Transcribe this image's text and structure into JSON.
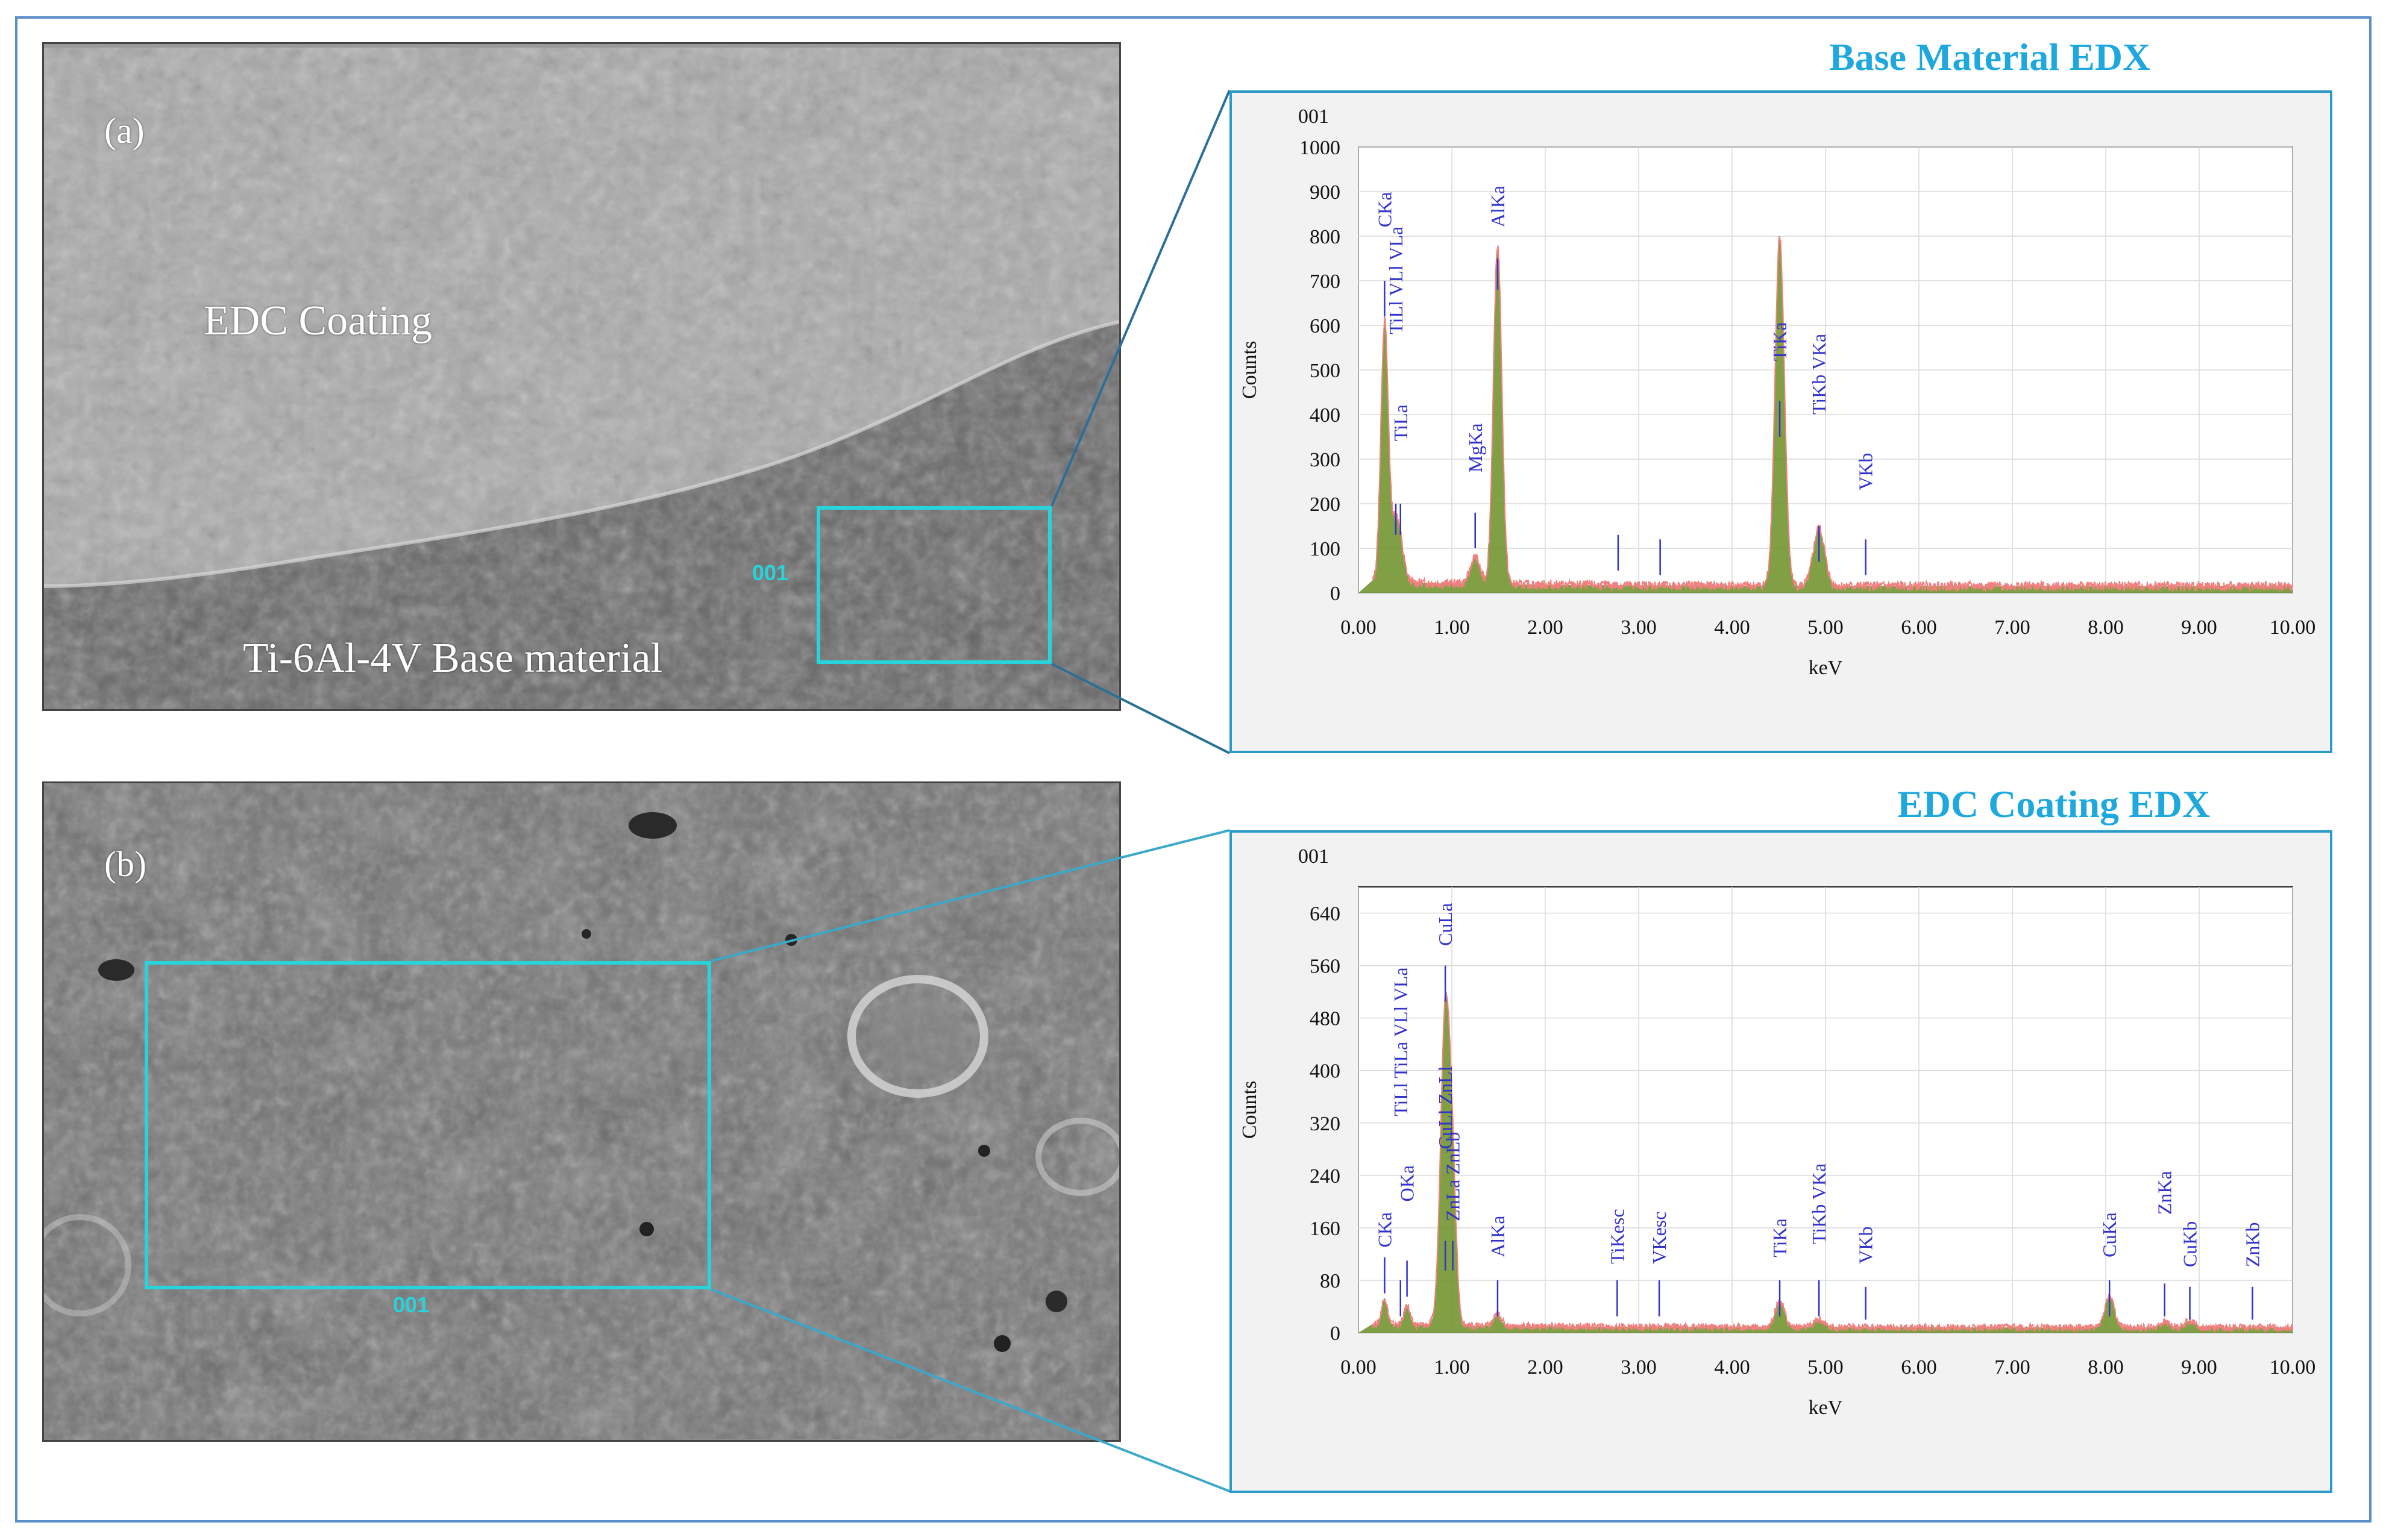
{
  "panel_a": {
    "label": "(a)",
    "coating_label": "EDC Coating",
    "base_label": "Ti-6Al-4V Base material",
    "site_tag": "001"
  },
  "panel_b": {
    "label": "(b)",
    "site_tag": "001"
  },
  "colors": {
    "accent": "#1fa8de",
    "region_box": "#27d4dc",
    "fit_fill": "#6b8e23",
    "spectrum_line": "#f08080",
    "peak_marker": "#3333cc",
    "frame": "#5b8fc9"
  },
  "chart_data": [
    {
      "type": "line",
      "title": "Base Material EDX",
      "subtitle": "001",
      "xlabel": "keV",
      "ylabel": "Counts",
      "xlim": [
        0,
        10
      ],
      "ylim": [
        0,
        1000
      ],
      "xticks": [
        "0.00",
        "1.00",
        "2.00",
        "3.00",
        "4.00",
        "5.00",
        "6.00",
        "7.00",
        "8.00",
        "9.00",
        "10.00"
      ],
      "yticks": [
        "0",
        "100",
        "200",
        "300",
        "400",
        "500",
        "600",
        "700",
        "800",
        "900",
        "1000"
      ],
      "grid": true,
      "peaks": [
        {
          "energy": 0.28,
          "counts": 580,
          "width": 0.04
        },
        {
          "energy": 0.4,
          "counts": 120,
          "width": 0.05
        },
        {
          "energy": 0.45,
          "counts": 40,
          "width": 0.05
        },
        {
          "energy": 1.25,
          "counts": 60,
          "width": 0.05
        },
        {
          "energy": 1.49,
          "counts": 760,
          "width": 0.045
        },
        {
          "energy": 4.51,
          "counts": 780,
          "width": 0.05
        },
        {
          "energy": 4.93,
          "counts": 130,
          "width": 0.06
        }
      ],
      "background_counts": 15,
      "peak_labels": [
        {
          "label": "CKa",
          "energy": 0.28,
          "label_counts": 820,
          "marker_top": 700,
          "marker_bottom": 620
        },
        {
          "label": "TiLl VLl VLa",
          "energy": 0.4,
          "label_counts": 580,
          "marker_top": 200,
          "marker_bottom": 130
        },
        {
          "label": "TiLa",
          "energy": 0.45,
          "label_counts": 340,
          "marker_top": 200,
          "marker_bottom": 130
        },
        {
          "label": "MgKa",
          "energy": 1.25,
          "label_counts": 270,
          "marker_top": 180,
          "marker_bottom": 100
        },
        {
          "label": "AlKa",
          "energy": 1.49,
          "label_counts": 820,
          "marker_top": 750,
          "marker_bottom": 680
        },
        {
          "label": "TiKa",
          "energy": 4.51,
          "label_counts": 520,
          "marker_top": 430,
          "marker_bottom": 350
        },
        {
          "label": "TiKb VKa",
          "energy": 4.93,
          "label_counts": 400,
          "marker_top": 150,
          "marker_bottom": 70
        },
        {
          "label": "VKb",
          "energy": 5.43,
          "label_counts": 230,
          "marker_top": 120,
          "marker_bottom": 40
        },
        {
          "label": "",
          "energy": 2.78,
          "label_counts": 0,
          "marker_top": 130,
          "marker_bottom": 50
        },
        {
          "label": "",
          "energy": 3.23,
          "label_counts": 0,
          "marker_top": 120,
          "marker_bottom": 40
        }
      ]
    },
    {
      "type": "line",
      "title": "EDC Coating EDX",
      "subtitle": "001",
      "xlabel": "keV",
      "ylabel": "Counts",
      "xlim": [
        0,
        10
      ],
      "ylim": [
        0,
        680
      ],
      "xticks": [
        "0.00",
        "1.00",
        "2.00",
        "3.00",
        "4.00",
        "5.00",
        "6.00",
        "7.00",
        "8.00",
        "9.00",
        "10.00"
      ],
      "yticks": [
        "0",
        "80",
        "160",
        "240",
        "320",
        "400",
        "480",
        "560",
        "640"
      ],
      "grid": true,
      "peaks": [
        {
          "energy": 0.28,
          "counts": 40,
          "width": 0.03
        },
        {
          "energy": 0.52,
          "counts": 30,
          "width": 0.03
        },
        {
          "energy": 0.93,
          "counts": 480,
          "width": 0.05
        },
        {
          "energy": 1.01,
          "counts": 180,
          "width": 0.04
        },
        {
          "energy": 1.49,
          "counts": 18,
          "width": 0.04
        },
        {
          "energy": 4.51,
          "counts": 40,
          "width": 0.05
        },
        {
          "energy": 4.93,
          "counts": 12,
          "width": 0.05
        },
        {
          "energy": 8.04,
          "counts": 48,
          "width": 0.05
        },
        {
          "energy": 8.63,
          "counts": 8,
          "width": 0.05
        },
        {
          "energy": 8.9,
          "counts": 10,
          "width": 0.05
        }
      ],
      "background_counts": 8,
      "peak_labels": [
        {
          "label": "CKa",
          "energy": 0.28,
          "label_counts": 130,
          "marker_top": 115,
          "marker_bottom": 60
        },
        {
          "label": "TiLl TiLa VLl VLa",
          "energy": 0.45,
          "label_counts": 330,
          "marker_top": 80,
          "marker_bottom": 25
        },
        {
          "label": "OKa",
          "energy": 0.52,
          "label_counts": 200,
          "marker_top": 110,
          "marker_bottom": 55
        },
        {
          "label": "CuLa",
          "energy": 0.93,
          "label_counts": 590,
          "marker_top": 560,
          "marker_bottom": 505
        },
        {
          "label": "ZnLa ZnLb",
          "energy": 1.01,
          "label_counts": 170,
          "marker_top": 140,
          "marker_bottom": 95
        },
        {
          "label": "CuLl ZnLl",
          "energy": 0.93,
          "label_counts": 280,
          "marker_top": 140,
          "marker_bottom": 95
        },
        {
          "label": "AlKa",
          "energy": 1.49,
          "label_counts": 115,
          "marker_top": 80,
          "marker_bottom": 25
        },
        {
          "label": "TiKesc",
          "energy": 2.77,
          "label_counts": 105,
          "marker_top": 80,
          "marker_bottom": 25
        },
        {
          "label": "VKesc",
          "energy": 3.22,
          "label_counts": 105,
          "marker_top": 80,
          "marker_bottom": 25
        },
        {
          "label": "TiKa",
          "energy": 4.51,
          "label_counts": 115,
          "marker_top": 80,
          "marker_bottom": 25
        },
        {
          "label": "TiKb VKa",
          "energy": 4.93,
          "label_counts": 135,
          "marker_top": 80,
          "marker_bottom": 25
        },
        {
          "label": "VKb",
          "energy": 5.43,
          "label_counts": 105,
          "marker_top": 70,
          "marker_bottom": 20
        },
        {
          "label": "CuKa",
          "energy": 8.04,
          "label_counts": 115,
          "marker_top": 80,
          "marker_bottom": 25
        },
        {
          "label": "ZnKa",
          "energy": 8.63,
          "label_counts": 180,
          "marker_top": 75,
          "marker_bottom": 25
        },
        {
          "label": "CuKb",
          "energy": 8.9,
          "label_counts": 100,
          "marker_top": 70,
          "marker_bottom": 20
        },
        {
          "label": "ZnKb",
          "energy": 9.57,
          "label_counts": 100,
          "marker_top": 70,
          "marker_bottom": 20
        }
      ]
    }
  ]
}
